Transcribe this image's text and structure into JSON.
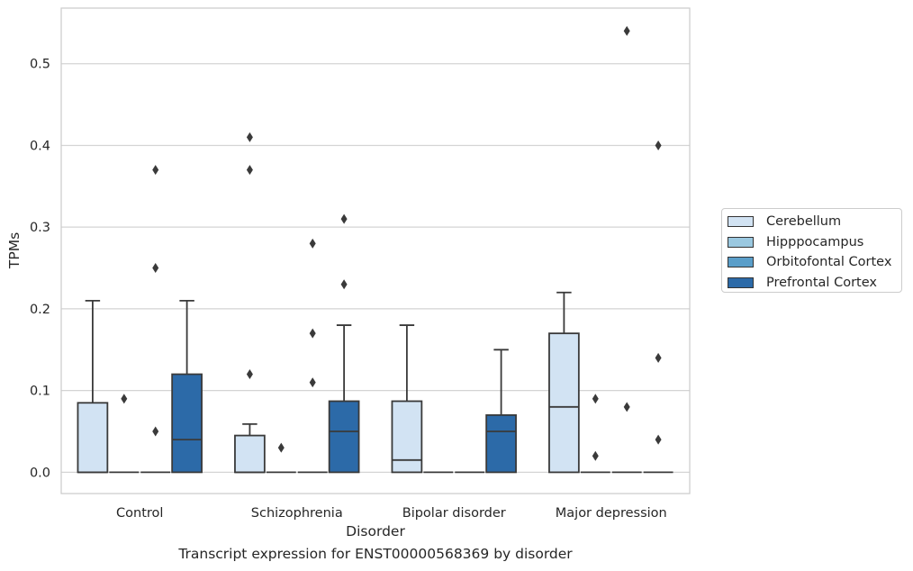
{
  "figure_caption": "Transcript expression for ENST00000568369 by disorder",
  "chart_data": {
    "type": "box",
    "xlabel": "Disorder",
    "ylabel": "TPMs",
    "ylim": [
      -0.026,
      0.568
    ],
    "yticks": [
      0.0,
      0.1,
      0.2,
      0.3,
      0.4,
      0.5
    ],
    "ytick_labels": [
      "0.0",
      "0.1",
      "0.2",
      "0.3",
      "0.4",
      "0.5"
    ],
    "grid": "horizontal",
    "legend_position": "right",
    "categories": [
      "Control",
      "Schizophrenia",
      "Bipolar disorder",
      "Major depression"
    ],
    "series": [
      {
        "name": "Cerebellum",
        "color": "#d2e3f3",
        "boxes": [
          {
            "whislo": 0.0,
            "q1": 0.0,
            "med": 0.0,
            "q3": 0.085,
            "whishi": 0.21,
            "fliers": []
          },
          {
            "whislo": 0.0,
            "q1": 0.0,
            "med": 0.0,
            "q3": 0.045,
            "whishi": 0.059,
            "fliers": [
              0.12,
              0.37,
              0.41
            ]
          },
          {
            "whislo": 0.0,
            "q1": 0.0,
            "med": 0.015,
            "q3": 0.087,
            "whishi": 0.18,
            "fliers": []
          },
          {
            "whislo": 0.0,
            "q1": 0.0,
            "med": 0.08,
            "q3": 0.17,
            "whishi": 0.22,
            "fliers": []
          }
        ]
      },
      {
        "name": "Hipppocampus",
        "color": "#9ac8e0",
        "boxes": [
          {
            "whislo": 0.0,
            "q1": 0.0,
            "med": 0.0,
            "q3": 0.0,
            "whishi": 0.0,
            "fliers": [
              0.09
            ]
          },
          {
            "whislo": 0.0,
            "q1": 0.0,
            "med": 0.0,
            "q3": 0.0,
            "whishi": 0.0,
            "fliers": [
              0.03
            ]
          },
          {
            "whislo": 0.0,
            "q1": 0.0,
            "med": 0.0,
            "q3": 0.0,
            "whishi": 0.0,
            "fliers": []
          },
          {
            "whislo": 0.0,
            "q1": 0.0,
            "med": 0.0,
            "q3": 0.0,
            "whishi": 0.0,
            "fliers": [
              0.02,
              0.09
            ]
          }
        ]
      },
      {
        "name": "Orbitofontal Cortex",
        "color": "#5a9ec9",
        "boxes": [
          {
            "whislo": 0.0,
            "q1": 0.0,
            "med": 0.0,
            "q3": 0.0,
            "whishi": 0.0,
            "fliers": [
              0.05,
              0.25,
              0.37
            ]
          },
          {
            "whislo": 0.0,
            "q1": 0.0,
            "med": 0.0,
            "q3": 0.0,
            "whishi": 0.0,
            "fliers": [
              0.11,
              0.17,
              0.28
            ]
          },
          {
            "whislo": 0.0,
            "q1": 0.0,
            "med": 0.0,
            "q3": 0.0,
            "whishi": 0.0,
            "fliers": []
          },
          {
            "whislo": 0.0,
            "q1": 0.0,
            "med": 0.0,
            "q3": 0.0,
            "whishi": 0.0,
            "fliers": [
              0.08,
              0.54
            ]
          }
        ]
      },
      {
        "name": "Prefrontal Cortex",
        "color": "#2c6aa8",
        "boxes": [
          {
            "whislo": 0.0,
            "q1": 0.0,
            "med": 0.04,
            "q3": 0.12,
            "whishi": 0.21,
            "fliers": []
          },
          {
            "whislo": 0.0,
            "q1": 0.0,
            "med": 0.05,
            "q3": 0.087,
            "whishi": 0.18,
            "fliers": [
              0.23,
              0.31
            ]
          },
          {
            "whislo": 0.0,
            "q1": 0.0,
            "med": 0.05,
            "q3": 0.07,
            "whishi": 0.15,
            "fliers": []
          },
          {
            "whislo": 0.0,
            "q1": 0.0,
            "med": 0.0,
            "q3": 0.0,
            "whishi": 0.0,
            "fliers": [
              0.04,
              0.14,
              0.4
            ]
          }
        ]
      }
    ]
  }
}
